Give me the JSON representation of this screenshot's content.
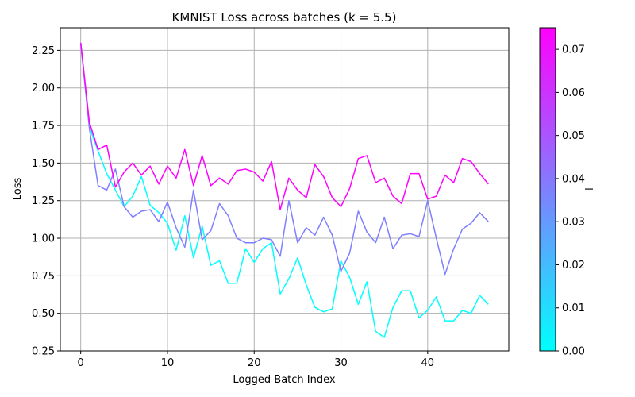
{
  "chart_data": {
    "type": "line",
    "title": "KMNIST Loss across batches (k = 5.5)",
    "xlabel": "Logged Batch Index",
    "ylabel": "Loss",
    "xlim": [
      -2.35,
      49.35
    ],
    "ylim": [
      0.25,
      2.4
    ],
    "xticks": [
      0,
      10,
      20,
      30,
      40
    ],
    "yticks": [
      0.25,
      0.5,
      0.75,
      1.0,
      1.25,
      1.5,
      1.75,
      2.0,
      2.25
    ],
    "ytick_labels": [
      "0.25",
      "0.50",
      "0.75",
      "1.00",
      "1.25",
      "1.50",
      "1.75",
      "2.00",
      "2.25"
    ],
    "grid": true,
    "colormap": "cool",
    "colorbar": {
      "label": "l",
      "range": [
        0.0,
        0.075
      ],
      "ticks": [
        0.0,
        0.01,
        0.02,
        0.03,
        0.04,
        0.05,
        0.06,
        0.07
      ],
      "tick_labels": [
        "0.00",
        "0.01",
        "0.02",
        "0.03",
        "0.04",
        "0.05",
        "0.06",
        "0.07"
      ]
    },
    "series": [
      {
        "level": 0.0,
        "color": "#00ffff",
        "x": [
          0,
          1,
          2,
          3,
          4,
          5,
          6,
          7,
          8,
          9,
          10,
          11,
          12,
          13,
          14,
          15,
          16,
          17,
          18,
          19,
          20,
          21,
          22,
          23,
          24,
          25,
          26,
          27,
          28,
          29,
          30,
          31,
          32,
          33,
          34,
          35,
          36,
          37,
          38,
          39,
          40,
          41,
          42,
          43,
          44,
          45,
          46,
          47
        ],
        "values": [
          2.3,
          1.74,
          1.58,
          1.43,
          1.32,
          1.21,
          1.28,
          1.41,
          1.22,
          1.17,
          1.1,
          0.92,
          1.15,
          0.87,
          1.08,
          0.82,
          0.85,
          0.7,
          0.7,
          0.93,
          0.84,
          0.93,
          0.97,
          0.63,
          0.73,
          0.87,
          0.69,
          0.54,
          0.51,
          0.53,
          0.85,
          0.74,
          0.56,
          0.71,
          0.38,
          0.34,
          0.54,
          0.65,
          0.65,
          0.47,
          0.52,
          0.61,
          0.45,
          0.45,
          0.52,
          0.5,
          0.62,
          0.56
        ]
      },
      {
        "level": 0.0375,
        "color": "#7f7fff",
        "x": [
          0,
          1,
          2,
          3,
          4,
          5,
          6,
          7,
          8,
          9,
          10,
          11,
          12,
          13,
          14,
          15,
          16,
          17,
          18,
          19,
          20,
          21,
          22,
          23,
          24,
          25,
          26,
          27,
          28,
          29,
          30,
          31,
          32,
          33,
          34,
          35,
          36,
          37,
          38,
          39,
          40,
          41,
          42,
          43,
          44,
          45,
          46,
          47
        ],
        "values": [
          2.3,
          1.73,
          1.35,
          1.32,
          1.46,
          1.21,
          1.14,
          1.18,
          1.19,
          1.11,
          1.24,
          1.07,
          0.94,
          1.32,
          0.99,
          1.05,
          1.23,
          1.15,
          1.0,
          0.97,
          0.97,
          1.0,
          0.99,
          0.88,
          1.25,
          0.97,
          1.07,
          1.02,
          1.14,
          1.02,
          0.78,
          0.9,
          1.18,
          1.04,
          0.97,
          1.14,
          0.93,
          1.02,
          1.03,
          1.01,
          1.25,
          1.0,
          0.76,
          0.93,
          1.06,
          1.1,
          1.17,
          1.11
        ]
      },
      {
        "level": 0.075,
        "color": "#ff00ff",
        "x": [
          0,
          1,
          2,
          3,
          4,
          5,
          6,
          7,
          8,
          9,
          10,
          11,
          12,
          13,
          14,
          15,
          16,
          17,
          18,
          19,
          20,
          21,
          22,
          23,
          24,
          25,
          26,
          27,
          28,
          29,
          30,
          31,
          32,
          33,
          34,
          35,
          36,
          37,
          38,
          39,
          40,
          41,
          42,
          43,
          44,
          45,
          46,
          47
        ],
        "values": [
          2.3,
          1.77,
          1.59,
          1.62,
          1.34,
          1.44,
          1.5,
          1.42,
          1.48,
          1.36,
          1.48,
          1.4,
          1.59,
          1.35,
          1.55,
          1.35,
          1.4,
          1.36,
          1.45,
          1.46,
          1.44,
          1.38,
          1.51,
          1.19,
          1.4,
          1.32,
          1.27,
          1.49,
          1.41,
          1.27,
          1.21,
          1.33,
          1.53,
          1.55,
          1.37,
          1.4,
          1.28,
          1.23,
          1.43,
          1.43,
          1.26,
          1.28,
          1.42,
          1.37,
          1.53,
          1.51,
          1.43,
          1.36
        ]
      }
    ]
  }
}
